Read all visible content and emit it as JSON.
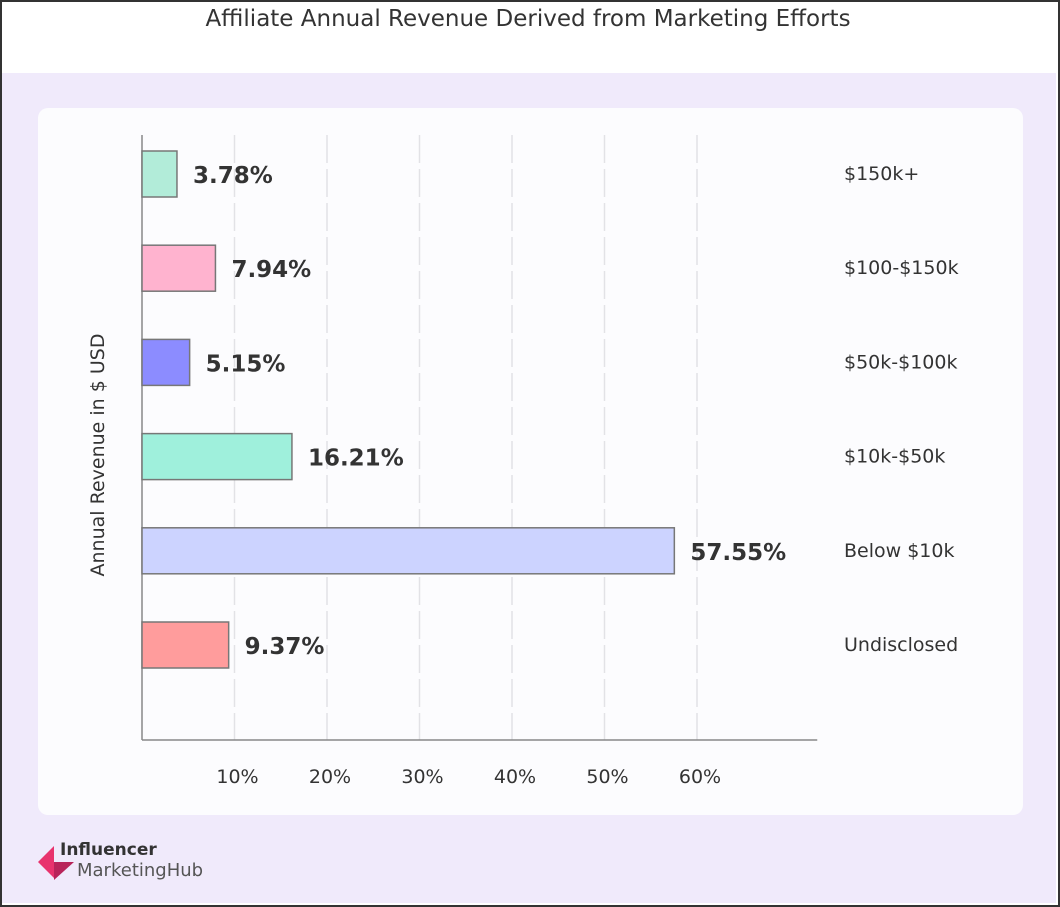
{
  "chart_data": {
    "type": "bar",
    "orientation": "horizontal",
    "title": "Affiliate Annual Revenue Derived from Marketing Efforts",
    "ylabel": "Annual Revenue in $ USD",
    "xlabel": "",
    "categories": [
      "$150k+",
      "$100-$150k",
      "$50k-$100k",
      "$10k-$50k",
      "Below $10k",
      "Undisclosed"
    ],
    "values": [
      3.78,
      7.94,
      5.15,
      16.21,
      57.55,
      9.37
    ],
    "data_labels": [
      "3.78%",
      "7.94%",
      "5.15%",
      "16.21%",
      "57.55%",
      "9.37%"
    ],
    "colors": [
      "#b2ecd9",
      "#ffb3cf",
      "#8c8cff",
      "#9ff0dc",
      "#ccd3ff",
      "#ff9c9c"
    ],
    "xticks": [
      10,
      20,
      30,
      40,
      50,
      60
    ],
    "xtick_labels": [
      "10%",
      "20%",
      "30%",
      "40%",
      "50%",
      "60%"
    ],
    "xlim": [
      0,
      73
    ],
    "grid": "vertical dashed",
    "category_labels_position": "right"
  },
  "branding": {
    "line1": "Influencer",
    "line2": "MarketingHub",
    "accent": "#e8336d"
  }
}
